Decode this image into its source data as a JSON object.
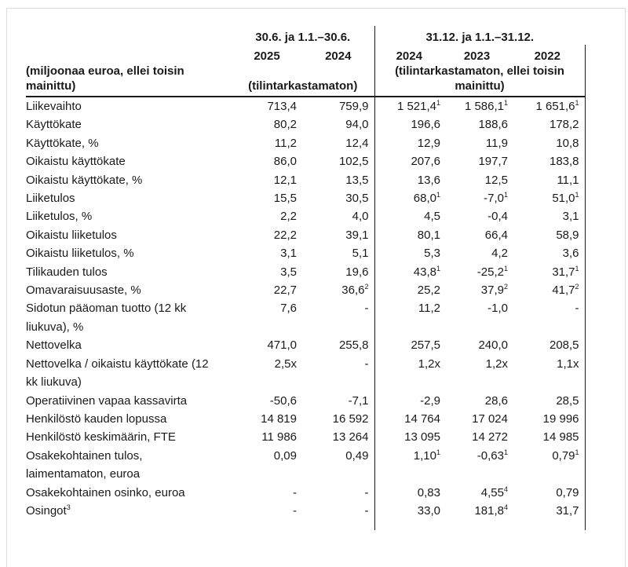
{
  "table": {
    "header": {
      "unit_note": "(miljoonaa euroa, ellei toisin\nmainittu)",
      "group_interim": {
        "title": "30.6. ja 1.1.–30.6.",
        "years": [
          "2025",
          "2024"
        ],
        "note": "(tilintarkastamaton)"
      },
      "group_annual": {
        "title": "31.12. ja 1.1.–31.12.",
        "years": [
          "2024",
          "2023",
          "2022"
        ],
        "note": "(tilintarkastamaton, ellei toisin\nmainittu)"
      }
    },
    "rows": [
      {
        "label": "Liikevaihto",
        "values": [
          "713,4",
          "759,9",
          "1 521,4^1",
          "1 586,1^1",
          "1 651,6^1"
        ]
      },
      {
        "label": "Käyttökate",
        "values": [
          "80,2",
          "94,0",
          "196,6",
          "188,6",
          "178,2"
        ]
      },
      {
        "label": "Käyttökate, %",
        "values": [
          "11,2",
          "12,4",
          "12,9",
          "11,9",
          "10,8"
        ]
      },
      {
        "label": "Oikaistu käyttökate",
        "values": [
          "86,0",
          "102,5",
          "207,6",
          "197,7",
          "183,8"
        ]
      },
      {
        "label": "Oikaistu käyttökate, %",
        "values": [
          "12,1",
          "13,5",
          "13,6",
          "12,5",
          "11,1"
        ]
      },
      {
        "label": "Liiketulos",
        "values": [
          "15,5",
          "30,5",
          "68,0^1",
          "-7,0^1",
          "51,0^1"
        ]
      },
      {
        "label": "Liiketulos, %",
        "values": [
          "2,2",
          "4,0",
          "4,5",
          "-0,4",
          "3,1"
        ]
      },
      {
        "label": "Oikaistu liiketulos",
        "values": [
          "22,2",
          "39,1",
          "80,1",
          "66,4",
          "58,9"
        ]
      },
      {
        "label": "Oikaistu liiketulos, %",
        "values": [
          "3,1",
          "5,1",
          "5,3",
          "4,2",
          "3,6"
        ]
      },
      {
        "label": "Tilikauden tulos",
        "values": [
          "3,5",
          "19,6",
          "43,8^1",
          "-25,2^1",
          "31,7^1"
        ]
      },
      {
        "label": "Omavaraisuusaste, %",
        "values": [
          "22,7",
          "36,6^2",
          "25,2",
          "37,9^2",
          "41,7^2"
        ]
      },
      {
        "label": "Sidotun pääoman tuotto (12 kk\nliukuva), %",
        "values": [
          "7,6",
          "-",
          "11,2",
          "-1,0",
          "-"
        ]
      },
      {
        "label": "Nettovelka",
        "values": [
          "471,0",
          "255,8",
          "257,5",
          "240,0",
          "208,5"
        ]
      },
      {
        "label": "Nettovelka / oikaistu käyttökate (12\nkk liukuva)",
        "values": [
          "2,5x",
          "-",
          "1,2x",
          "1,2x",
          "1,1x"
        ]
      },
      {
        "label": "Operatiivinen vapaa kassavirta",
        "values": [
          "-50,6",
          "-7,1",
          "-2,9",
          "28,6",
          "28,5"
        ]
      },
      {
        "label": "Henkilöstö kauden lopussa",
        "values": [
          "14 819",
          "16 592",
          "14 764",
          "17 024",
          "19 996"
        ]
      },
      {
        "label": "Henkilöstö keskimäärin, FTE",
        "values": [
          "11 986",
          "13 264",
          "13 095",
          "14 272",
          "14 985"
        ]
      },
      {
        "label": "Osakekohtainen tulos,\nlaimentamaton, euroa",
        "values": [
          "0,09",
          "0,49",
          "1,10^1",
          "-0,63^1",
          "0,79^1"
        ]
      },
      {
        "label": "Osakekohtainen osinko, euroa",
        "values": [
          "-",
          "-",
          "0,83",
          "4,55^4",
          "0,79"
        ]
      },
      {
        "label": "Osingot^3",
        "values": [
          "-",
          "-",
          "33,0",
          "181,8^4",
          "31,7"
        ]
      }
    ]
  },
  "colors": {
    "text": "#1a1a1a",
    "rule": "#1a1a1a",
    "page_frame": "#dcdcdc",
    "background": "#ffffff"
  }
}
